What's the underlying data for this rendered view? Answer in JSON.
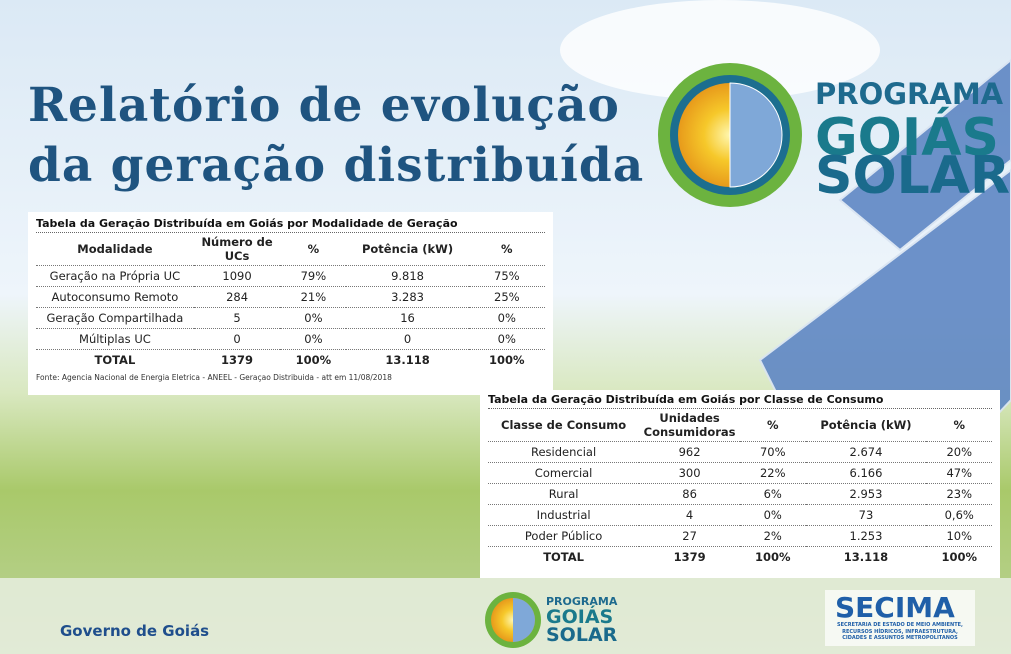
{
  "title": {
    "line1": "Relatório de evolução",
    "line2": "da geração distribuída"
  },
  "logo": {
    "line1": "PROGRAMA",
    "line2": "GOIÁS",
    "line3": "SOLAR"
  },
  "table1": {
    "title": "Tabela da Geração Distribuída em Goiás por Modalidade de Geração",
    "headers": [
      "Modalidade",
      "Número de UCs",
      "%",
      "Potência (kW)",
      "%"
    ],
    "rows": [
      [
        "Geração na Própria UC",
        "1090",
        "79%",
        "9.818",
        "75%"
      ],
      [
        "Autoconsumo Remoto",
        "284",
        "21%",
        "3.283",
        "25%"
      ],
      [
        "Geração Compartilhada",
        "5",
        "0%",
        "16",
        "0%"
      ],
      [
        "Múltiplas UC",
        "0",
        "0%",
        "0",
        "0%"
      ]
    ],
    "total": [
      "TOTAL",
      "1379",
      "100%",
      "13.118",
      "100%"
    ],
    "source": "Fonte: Agencia Nacional de Energia Eletrica - ANEEL - Geraçao Distribuida - att em 11/08/2018"
  },
  "table2": {
    "title": "Tabela da Geração Distribuída em Goiás por Classe de Consumo",
    "headers": [
      "Classe de Consumo",
      "Unidades Consumidoras",
      "%",
      "Potência (kW)",
      "%"
    ],
    "rows": [
      [
        "Residencial",
        "962",
        "70%",
        "2.674",
        "20%"
      ],
      [
        "Comercial",
        "300",
        "22%",
        "6.166",
        "47%"
      ],
      [
        "Rural",
        "86",
        "6%",
        "2.953",
        "23%"
      ],
      [
        "Industrial",
        "4",
        "0%",
        "73",
        "0,6%"
      ],
      [
        "Poder Público",
        "27",
        "2%",
        "1.253",
        "10%"
      ]
    ],
    "total": [
      "TOTAL",
      "1379",
      "100%",
      "13.118",
      "100%"
    ]
  },
  "footer": {
    "government": "Governo de Goiás",
    "logo": [
      "PROGRAMA",
      "GOIÁS",
      "SOLAR"
    ],
    "secima": "SECIMA",
    "secima_subtitle": [
      "SECRETARIA DE ESTADO DE MEIO AMBIENTE,",
      "RECURSOS HÍDRICOS, INFRAESTRUTURA,",
      "CIDADES E ASSUNTOS METROPOLITANOS"
    ]
  }
}
